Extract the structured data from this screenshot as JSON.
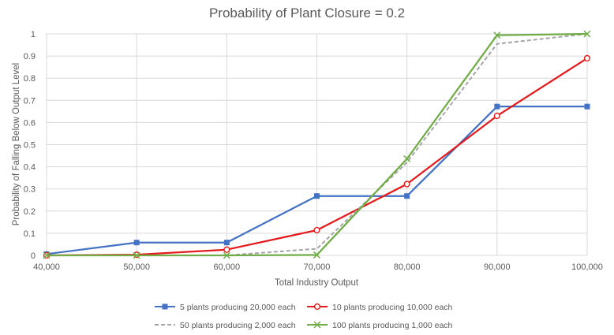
{
  "chart_data": {
    "type": "line",
    "title": "Probability of Plant Closure = 0.2",
    "xlabel": "Total Industry Output",
    "ylabel": "Probability of Falling Below Output Level",
    "x": [
      40000,
      50000,
      60000,
      70000,
      80000,
      90000,
      100000
    ],
    "x_tick_labels": [
      "40,000",
      "50,000",
      "60,000",
      "70,000",
      "80,000",
      "90,000",
      "100,000"
    ],
    "y_tick_labels": [
      "0",
      "0.1",
      "0.2",
      "0.3",
      "0.4",
      "0.5",
      "0.6",
      "0.7",
      "0.8",
      "0.9",
      "1"
    ],
    "xlim": [
      40000,
      100000
    ],
    "ylim": [
      0,
      1
    ],
    "grid": "vertical and horizontal",
    "legend_position": "bottom",
    "series": [
      {
        "name": "5 plants producing 20,000 each",
        "color": "#4472c4",
        "marker": "square",
        "dash": "solid",
        "values": [
          0.006,
          0.058,
          0.058,
          0.268,
          0.268,
          0.672,
          0.672
        ]
      },
      {
        "name": "10 plants producing 10,000 each",
        "color": "#e41a1c",
        "marker": "circle",
        "dash": "solid",
        "values": [
          0.0,
          0.003,
          0.026,
          0.114,
          0.322,
          0.63,
          0.89
        ]
      },
      {
        "name": "50 plants producing 2,000 each",
        "color": "#a5a5a5",
        "marker": "none",
        "dash": "dashed",
        "values": [
          0.0,
          0.0,
          0.0,
          0.03,
          0.42,
          0.955,
          1.0
        ]
      },
      {
        "name": "100 plants producing 1,000 each",
        "color": "#70ad47",
        "marker": "x",
        "dash": "solid",
        "values": [
          0.0,
          0.0,
          0.0,
          0.002,
          0.436,
          0.994,
          1.0
        ]
      }
    ]
  }
}
